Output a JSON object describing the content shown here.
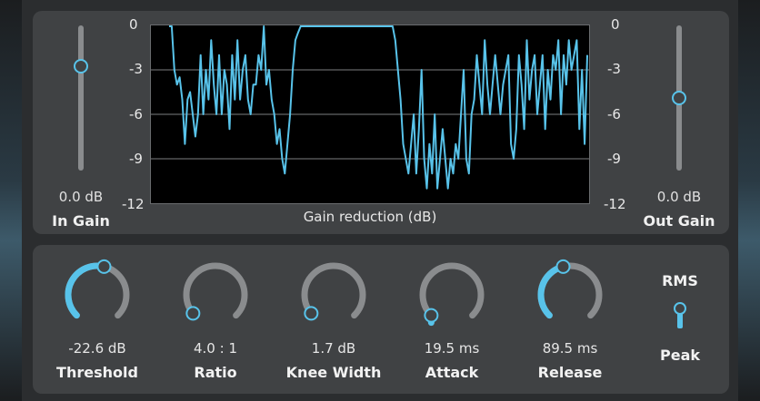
{
  "axis": {
    "ticks": [
      "0",
      "-3",
      "-6",
      "-9",
      "-12"
    ]
  },
  "graph": {
    "caption": "Gain reduction (dB)",
    "ylim": [
      -12,
      0
    ],
    "line_color": "#58c3ea"
  },
  "in_gain": {
    "value": "0.0 dB",
    "label": "In Gain",
    "level": 0.72
  },
  "out_gain": {
    "value": "0.0 dB",
    "label": "Out Gain",
    "level": 0.5
  },
  "knobs": [
    {
      "value": "-22.6 dB",
      "label": "Threshold",
      "level": 0.55
    },
    {
      "value": "4.0 : 1",
      "label": "Ratio",
      "level": 0.02
    },
    {
      "value": "1.7 dB",
      "label": "Knee Width",
      "level": 0.02
    },
    {
      "value": "19.5 ms",
      "label": "Attack",
      "level": 0.0
    },
    {
      "value": "89.5 ms",
      "label": "Release",
      "level": 0.45
    }
  ],
  "detector": {
    "top_label": "RMS",
    "bottom_label": "Peak",
    "position": "bottom"
  },
  "chart_data": {
    "type": "line",
    "ylabel": "",
    "xlabel": "Gain reduction (dB)",
    "ylim": [
      -12,
      0
    ],
    "grid": true,
    "series": [
      {
        "values": [
          0,
          0,
          -3,
          -4,
          -3.5,
          -5,
          -8,
          -5,
          -4.5,
          -6,
          -7.5,
          -6,
          -2,
          -6,
          -3,
          -5,
          -1,
          -4,
          -6,
          -2,
          -6,
          -3,
          -4,
          -7,
          -2,
          -5,
          -1,
          -5,
          -3,
          -2,
          -5,
          -6,
          -4,
          -4,
          -2,
          -3,
          0,
          -4,
          -3,
          -5,
          -6,
          -8,
          -7,
          -9,
          -10,
          -8,
          -6,
          -3,
          -1,
          -0.5,
          0,
          0,
          0,
          0,
          0,
          0,
          0,
          0,
          0,
          0,
          0,
          0,
          0,
          0,
          0,
          0,
          0,
          0,
          0,
          0,
          0,
          0,
          0,
          0,
          0,
          0,
          0,
          0,
          0,
          0,
          0,
          0,
          0,
          0,
          0,
          0,
          -1,
          -3,
          -5,
          -8,
          -9,
          -10,
          -8,
          -6,
          -10,
          -7,
          -3,
          -9,
          -11,
          -8,
          -10,
          -6,
          -11,
          -9,
          -7,
          -9,
          -11,
          -9,
          -10,
          -8,
          -9,
          -6,
          -3,
          -9,
          -10,
          -6,
          -5,
          -2,
          -4,
          -6,
          -1,
          -4,
          -6,
          -4,
          -2,
          -4,
          -6,
          -4,
          -3,
          -2,
          -8,
          -9,
          -7,
          -2,
          -4,
          -7,
          -1,
          -5,
          -3,
          -2,
          -6,
          -4,
          -2,
          -7,
          -3,
          -5,
          -2,
          -3,
          -1,
          -6,
          -2,
          -4,
          -1,
          -3,
          -2,
          -1,
          -7,
          -3,
          -8,
          -2
        ]
      }
    ]
  }
}
